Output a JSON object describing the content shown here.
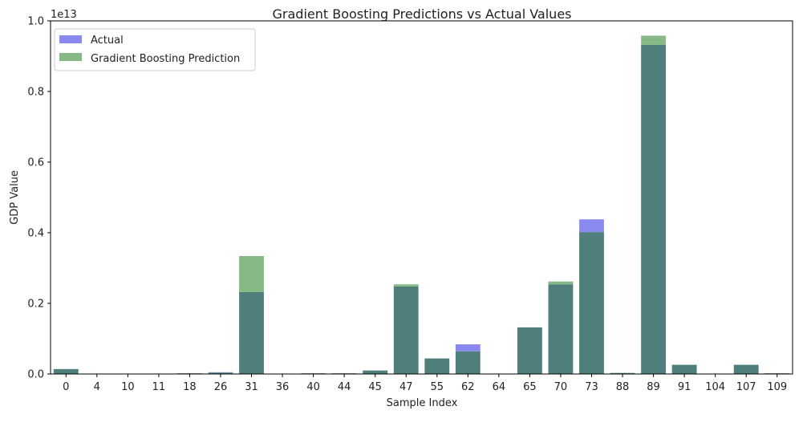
{
  "chart_data": {
    "type": "bar",
    "title": "Gradient Boosting Predictions vs Actual Values",
    "xlabel": "Sample Index",
    "ylabel": "GDP Value",
    "offset_label": "1e13",
    "categories": [
      "0",
      "4",
      "10",
      "11",
      "18",
      "26",
      "31",
      "36",
      "40",
      "44",
      "45",
      "47",
      "55",
      "62",
      "64",
      "65",
      "70",
      "73",
      "88",
      "89",
      "91",
      "104",
      "107",
      "109"
    ],
    "yticks": [
      "0.0",
      "0.2",
      "0.4",
      "0.6",
      "0.8",
      "1.0"
    ],
    "ylim": [
      0,
      1.0
    ],
    "grid": false,
    "legend_position": "top-left",
    "series": [
      {
        "name": "Actual",
        "color": "#8a8aee",
        "values": [
          0.014,
          0.0,
          0.0,
          0.0,
          0.002,
          0.005,
          0.232,
          0.0,
          0.002,
          0.002,
          0.01,
          0.248,
          0.044,
          0.084,
          0.0,
          0.132,
          0.254,
          0.438,
          0.003,
          0.932,
          0.026,
          0.0,
          0.026,
          0.002
        ]
      },
      {
        "name": "Gradient Boosting Prediction",
        "color": "#86b986",
        "values": [
          0.014,
          0.0,
          0.0,
          0.0,
          0.002,
          0.004,
          0.334,
          0.0,
          0.002,
          0.002,
          0.01,
          0.254,
          0.044,
          0.064,
          0.0,
          0.132,
          0.262,
          0.402,
          0.003,
          0.958,
          0.026,
          0.0,
          0.026,
          0.002
        ]
      }
    ],
    "overlap_color": "#4f7f7b"
  }
}
